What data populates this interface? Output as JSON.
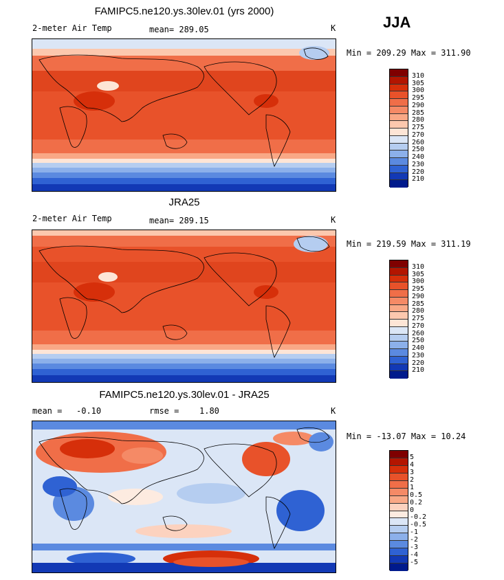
{
  "season": "JJA",
  "panels": [
    {
      "title": "FAMIPC5.ne120.ys.30lev.01 (yrs 2000)",
      "left_label": "2-meter Air Temp",
      "center_label": "mean= 289.05",
      "units": "K",
      "minmax": "Min = 209.29 Max = 311.90",
      "levels": [
        "310",
        "305",
        "300",
        "295",
        "290",
        "285",
        "280",
        "275",
        "270",
        "260",
        "250",
        "240",
        "230",
        "220",
        "210"
      ],
      "colors": [
        "#7f0000",
        "#b31500",
        "#d62f0a",
        "#e8522a",
        "#f06e48",
        "#f58a66",
        "#f9a886",
        "#fcc8ae",
        "#fde5d6",
        "#dbe6f6",
        "#b5cdf0",
        "#8cb0ea",
        "#5b8ae0",
        "#2f62d3",
        "#1239b5",
        "#001a8c"
      ]
    },
    {
      "title": "JRA25",
      "left_label": "2-meter Air Temp",
      "center_label": "mean= 289.15",
      "units": "K",
      "minmax": "Min = 219.59 Max = 311.19",
      "levels": [
        "310",
        "305",
        "300",
        "295",
        "290",
        "285",
        "280",
        "275",
        "270",
        "260",
        "250",
        "240",
        "230",
        "220",
        "210"
      ],
      "colors": [
        "#7f0000",
        "#b31500",
        "#d62f0a",
        "#e8522a",
        "#f06e48",
        "#f58a66",
        "#f9a886",
        "#fcc8ae",
        "#fde5d6",
        "#dbe6f6",
        "#b5cdf0",
        "#8cb0ea",
        "#5b8ae0",
        "#2f62d3",
        "#1239b5",
        "#001a8c"
      ]
    },
    {
      "title": "FAMIPC5.ne120.ys.30lev.01 - JRA25",
      "mean_label": "mean =",
      "mean_value": "-0.10",
      "rmse_label": "rmse =",
      "rmse_value": "1.80",
      "units": "K",
      "minmax": "Min = -13.07 Max =  10.24",
      "levels": [
        "5",
        "4",
        "3",
        "2",
        "1",
        "0.5",
        "0.2",
        "0",
        "-0.2",
        "-0.5",
        "-1",
        "-2",
        "-3",
        "-4",
        "-5"
      ],
      "colors": [
        "#7f0000",
        "#b31500",
        "#d62f0a",
        "#e8522a",
        "#f06e48",
        "#f58a66",
        "#f9a886",
        "#fcd2bf",
        "#fdebe0",
        "#dbe6f6",
        "#b5cdf0",
        "#8cb0ea",
        "#5b8ae0",
        "#2f62d3",
        "#1239b5",
        "#001a8c"
      ]
    }
  ],
  "chart_data": [
    {
      "type": "heatmap",
      "title": "FAMIPC5.ne120.ys.30lev.01 (yrs 2000)",
      "variable": "2-meter Air Temp",
      "units": "K",
      "mean": 289.05,
      "min": 209.29,
      "max": 311.9,
      "contour_levels": [
        210,
        220,
        230,
        240,
        250,
        260,
        270,
        275,
        280,
        285,
        290,
        295,
        300,
        305,
        310
      ]
    },
    {
      "type": "heatmap",
      "title": "JRA25",
      "variable": "2-meter Air Temp",
      "units": "K",
      "mean": 289.15,
      "min": 219.59,
      "max": 311.19,
      "contour_levels": [
        210,
        220,
        230,
        240,
        250,
        260,
        270,
        275,
        280,
        285,
        290,
        295,
        300,
        305,
        310
      ]
    },
    {
      "type": "heatmap",
      "title": "FAMIPC5.ne120.ys.30lev.01 - JRA25",
      "units": "K",
      "mean": -0.1,
      "rmse": 1.8,
      "min": -13.07,
      "max": 10.24,
      "contour_levels": [
        -5,
        -4,
        -3,
        -2,
        -1,
        -0.5,
        -0.2,
        0,
        0.2,
        0.5,
        1,
        2,
        3,
        4,
        5
      ]
    }
  ]
}
